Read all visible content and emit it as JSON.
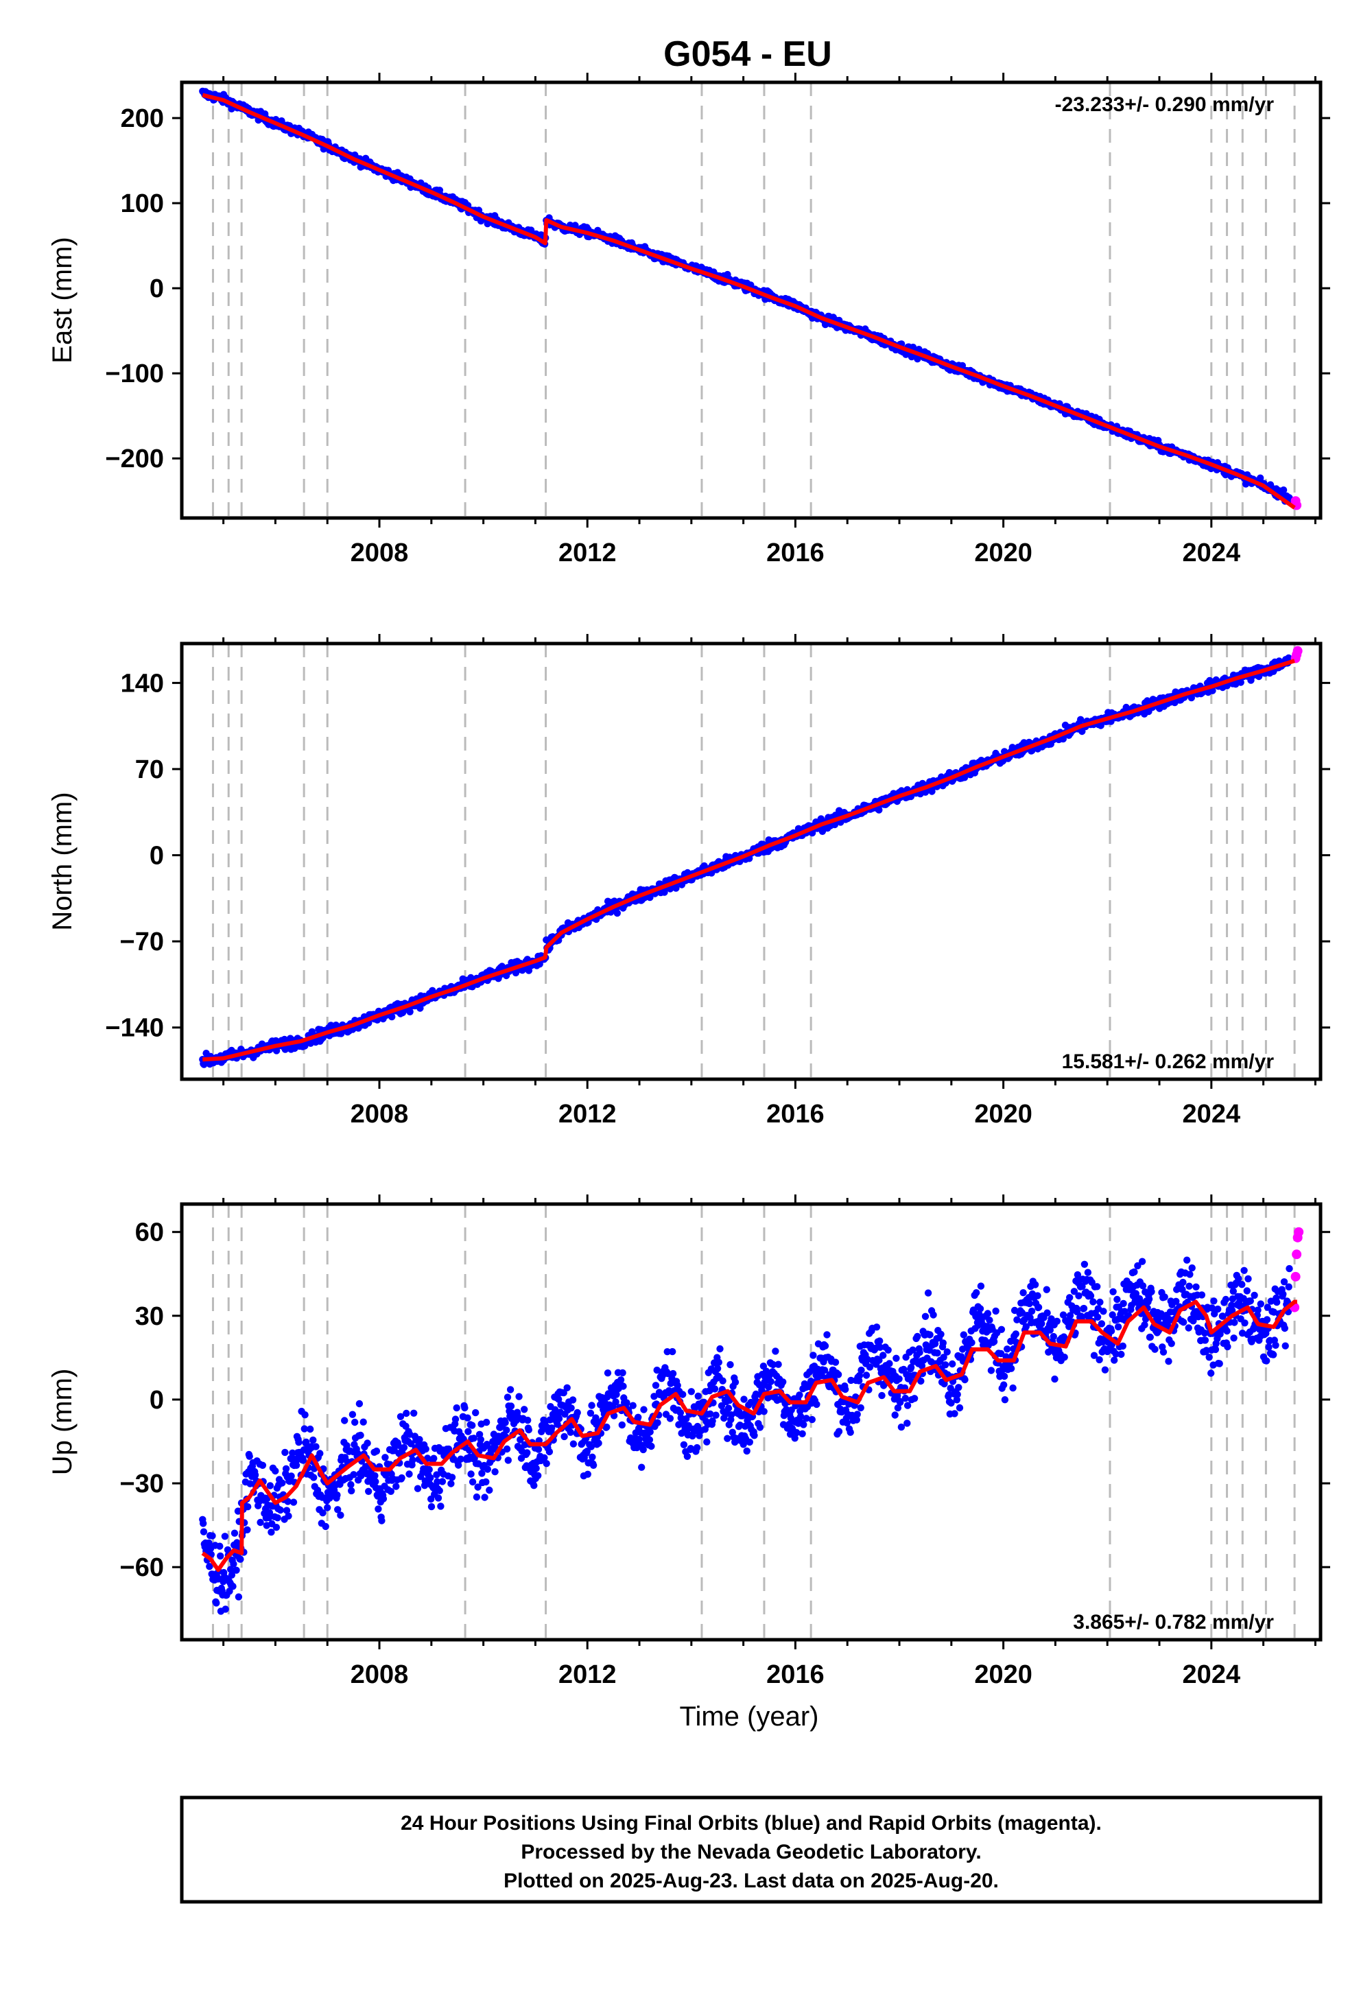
{
  "title": "G054 - EU",
  "xlabel": "Time (year)",
  "footer": {
    "line1": "24 Hour Positions Using Final Orbits (blue) and Rapid Orbits (magenta).",
    "line2": "Processed by the Nevada Geodetic Laboratory.",
    "line3": "Plotted on 2025-Aug-23. Last data on 2025-Aug-20."
  },
  "colors": {
    "final_orbits": "#0000ff",
    "rapid_orbits": "#ff00ff",
    "model": "#ff0000",
    "event_lines": "#bbbbbb",
    "frame": "#000000"
  },
  "chart_data": [
    {
      "type": "scatter",
      "component": "east",
      "ylabel": "East (mm)",
      "rate_label": "-23.233+/- 0.290 mm/yr",
      "rate_label_position": "top-right",
      "xlim": [
        2004.2,
        2026.1
      ],
      "ylim": [
        -270,
        242
      ],
      "xticks": [
        2008,
        2012,
        2016,
        2020,
        2024
      ],
      "yticks": [
        200,
        100,
        0,
        -100,
        -200
      ],
      "ytick_labels": [
        "200",
        "100",
        "0",
        "−100",
        "−200"
      ],
      "grid": false,
      "event_lines": [
        2004.8,
        2005.1,
        2005.35,
        2006.55,
        2007.0,
        2009.65,
        2011.2,
        2014.2,
        2015.4,
        2016.3,
        2022.05,
        2024.0,
        2024.3,
        2024.6,
        2025.05,
        2025.6
      ],
      "series": [
        {
          "name": "Final Orbits",
          "color": "#0000ff",
          "x": [
            2004.6,
            2005.0,
            2005.5,
            2006.0,
            2006.5,
            2007.0,
            2007.5,
            2008.0,
            2008.5,
            2009.0,
            2009.5,
            2010.0,
            2010.5,
            2011.0,
            2011.19,
            2011.21,
            2011.5,
            2012.0,
            2012.5,
            2013.0,
            2013.5,
            2014.0,
            2014.5,
            2015.0,
            2015.5,
            2016.0,
            2016.5,
            2017.0,
            2017.5,
            2018.0,
            2018.5,
            2019.0,
            2019.5,
            2020.0,
            2020.5,
            2021.0,
            2021.5,
            2022.0,
            2022.5,
            2023.0,
            2023.5,
            2024.0,
            2024.5,
            2025.0,
            2025.5
          ],
          "y": [
            229,
            222,
            208,
            194,
            182,
            168,
            153,
            139,
            127,
            113,
            100,
            84,
            72,
            61,
            54,
            80,
            72,
            66,
            57,
            45,
            34,
            24,
            14,
            3,
            -9,
            -20,
            -35,
            -46,
            -57,
            -69,
            -80,
            -92,
            -103,
            -115,
            -126,
            -138,
            -150,
            -162,
            -174,
            -186,
            -196,
            -207,
            -219,
            -232,
            -246
          ]
        },
        {
          "name": "Rapid Orbits",
          "color": "#ff00ff",
          "x": [
            2025.62,
            2025.64
          ],
          "y": [
            -250,
            -255
          ]
        },
        {
          "name": "Model",
          "color": "#ff0000",
          "x": [
            2004.6,
            2005.0,
            2005.5,
            2006.0,
            2006.5,
            2007.0,
            2007.5,
            2008.0,
            2008.5,
            2009.0,
            2009.5,
            2010.0,
            2010.5,
            2011.0,
            2011.19,
            2011.21,
            2011.5,
            2012.0,
            2012.5,
            2013.0,
            2013.5,
            2014.0,
            2014.5,
            2015.0,
            2015.5,
            2016.0,
            2016.5,
            2017.0,
            2017.5,
            2018.0,
            2018.5,
            2019.0,
            2019.5,
            2020.0,
            2020.5,
            2021.0,
            2021.5,
            2022.0,
            2022.5,
            2023.0,
            2023.5,
            2024.0,
            2024.5,
            2025.0,
            2025.6
          ],
          "y": [
            227,
            221,
            207,
            194,
            181,
            167,
            152,
            139,
            126,
            113,
            99,
            84,
            72,
            60,
            53,
            80,
            72,
            65,
            56,
            45,
            34,
            23,
            13,
            2,
            -10,
            -21,
            -35,
            -46,
            -57,
            -69,
            -80,
            -92,
            -103,
            -115,
            -126,
            -138,
            -150,
            -162,
            -174,
            -186,
            -196,
            -207,
            -219,
            -232,
            -258
          ]
        }
      ]
    },
    {
      "type": "scatter",
      "component": "north",
      "ylabel": "North (mm)",
      "rate_label": "15.581+/- 0.262 mm/yr",
      "rate_label_position": "bottom-right",
      "xlim": [
        2004.2,
        2026.1
      ],
      "ylim": [
        -182,
        172
      ],
      "xticks": [
        2008,
        2012,
        2016,
        2020,
        2024
      ],
      "yticks": [
        140,
        70,
        0,
        -70,
        -140
      ],
      "ytick_labels": [
        "140",
        "70",
        "0",
        "−70",
        "−140"
      ],
      "grid": false,
      "event_lines": [
        2004.8,
        2005.1,
        2005.35,
        2006.55,
        2007.0,
        2009.65,
        2011.2,
        2014.2,
        2015.4,
        2016.3,
        2022.05,
        2024.0,
        2024.3,
        2024.6,
        2025.05,
        2025.6
      ],
      "series": [
        {
          "name": "Final Orbits",
          "color": "#0000ff",
          "x": [
            2004.6,
            2005.0,
            2005.5,
            2006.0,
            2006.5,
            2007.0,
            2007.5,
            2008.0,
            2008.5,
            2009.0,
            2009.5,
            2010.0,
            2010.5,
            2011.0,
            2011.19,
            2011.21,
            2011.5,
            2012.0,
            2012.5,
            2013.0,
            2013.5,
            2014.0,
            2014.5,
            2015.0,
            2015.5,
            2016.0,
            2016.5,
            2017.0,
            2017.5,
            2018.0,
            2018.5,
            2019.0,
            2019.5,
            2020.0,
            2020.5,
            2021.0,
            2021.5,
            2022.0,
            2022.5,
            2023.0,
            2023.5,
            2024.0,
            2024.5,
            2025.0,
            2025.5
          ],
          "y": [
            -167,
            -165,
            -160,
            -155,
            -151,
            -144,
            -138,
            -130,
            -123,
            -115,
            -108,
            -100,
            -93,
            -86,
            -83,
            -75,
            -63,
            -52,
            -42,
            -33,
            -25,
            -17,
            -9,
            -1,
            8,
            16,
            25,
            32,
            40,
            48,
            55,
            63,
            72,
            80,
            88,
            96,
            105,
            111,
            117,
            124,
            131,
            137,
            144,
            150,
            158
          ]
        },
        {
          "name": "Rapid Orbits",
          "color": "#ff00ff",
          "x": [
            2025.62,
            2025.64,
            2025.66
          ],
          "y": [
            160,
            163,
            166
          ]
        },
        {
          "name": "Model",
          "color": "#ff0000",
          "x": [
            2004.6,
            2005.0,
            2005.5,
            2006.0,
            2006.5,
            2007.0,
            2007.5,
            2008.0,
            2008.5,
            2009.0,
            2009.5,
            2010.0,
            2010.5,
            2011.0,
            2011.19,
            2011.21,
            2011.5,
            2012.0,
            2012.5,
            2013.0,
            2013.5,
            2014.0,
            2014.5,
            2015.0,
            2015.5,
            2016.0,
            2016.5,
            2017.0,
            2017.5,
            2018.0,
            2018.5,
            2019.0,
            2019.5,
            2020.0,
            2020.5,
            2021.0,
            2021.5,
            2022.0,
            2022.5,
            2023.0,
            2023.5,
            2024.0,
            2024.5,
            2025.0,
            2025.6
          ],
          "y": [
            -166,
            -165,
            -160,
            -155,
            -151,
            -144,
            -138,
            -130,
            -123,
            -115,
            -108,
            -100,
            -93,
            -86,
            -83,
            -75,
            -63,
            -52,
            -42,
            -33,
            -25,
            -17,
            -9,
            -1,
            8,
            16,
            25,
            32,
            40,
            48,
            55,
            63,
            72,
            80,
            88,
            96,
            105,
            111,
            117,
            124,
            131,
            137,
            144,
            150,
            158
          ]
        }
      ]
    },
    {
      "type": "scatter",
      "component": "up",
      "ylabel": "Up (mm)",
      "rate_label": "3.865+/- 0.782 mm/yr",
      "rate_label_position": "bottom-right",
      "xlim": [
        2004.2,
        2026.1
      ],
      "ylim": [
        -86,
        70
      ],
      "xticks": [
        2008,
        2012,
        2016,
        2020,
        2024
      ],
      "yticks": [
        60,
        30,
        0,
        -30,
        -60
      ],
      "ytick_labels": [
        "60",
        "30",
        "0",
        "−30",
        "−60"
      ],
      "grid": false,
      "event_lines": [
        2004.8,
        2005.1,
        2005.35,
        2006.55,
        2007.0,
        2009.65,
        2011.2,
        2014.2,
        2015.4,
        2016.3,
        2022.05,
        2024.0,
        2024.3,
        2024.6,
        2025.05,
        2025.6
      ],
      "series": [
        {
          "name": "Final Orbits",
          "color": "#0000ff",
          "x": [
            2004.6,
            2004.9,
            2005.2,
            2005.35,
            2005.5,
            2005.8,
            2006.2,
            2006.5,
            2007.0,
            2007.5,
            2008.0,
            2008.5,
            2009.0,
            2009.5,
            2010.0,
            2010.5,
            2011.0,
            2011.5,
            2012.0,
            2012.5,
            2013.0,
            2013.5,
            2014.0,
            2014.5,
            2015.0,
            2015.5,
            2016.0,
            2016.5,
            2017.0,
            2017.5,
            2018.0,
            2018.5,
            2019.0,
            2019.5,
            2020.0,
            2020.5,
            2021.0,
            2021.5,
            2022.0,
            2022.5,
            2023.0,
            2023.5,
            2024.0,
            2024.5,
            2025.0,
            2025.5
          ],
          "y": [
            -56,
            -60,
            -57,
            -50,
            -32,
            -36,
            -30,
            -22,
            -30,
            -23,
            -26,
            -20,
            -24,
            -17,
            -20,
            -10,
            -16,
            -6,
            -13,
            -1,
            -10,
            2,
            -7,
            0,
            -5,
            4,
            -2,
            9,
            1,
            14,
            5,
            20,
            10,
            25,
            17,
            29,
            22,
            32,
            27,
            33,
            30,
            35,
            26,
            31,
            27,
            32
          ]
        },
        {
          "name": "Rapid Orbits",
          "color": "#ff00ff",
          "x": [
            2025.6,
            2025.62,
            2025.64,
            2025.66,
            2025.68
          ],
          "y": [
            33,
            44,
            52,
            58,
            60
          ]
        },
        {
          "name": "Model",
          "color": "#ff0000",
          "x": [
            2004.6,
            2004.75,
            2004.9,
            2005.05,
            2005.2,
            2005.35,
            2005.36,
            2005.5,
            2005.7,
            2006.0,
            2006.2,
            2006.4,
            2006.7,
            2006.9,
            2007.0,
            2007.2,
            2007.4,
            2007.7,
            2007.9,
            2008.2,
            2008.4,
            2008.7,
            2008.9,
            2009.2,
            2009.4,
            2009.7,
            2009.9,
            2010.2,
            2010.4,
            2010.7,
            2010.9,
            2011.2,
            2011.4,
            2011.7,
            2011.9,
            2012.2,
            2012.4,
            2012.7,
            2012.9,
            2013.2,
            2013.4,
            2013.7,
            2013.9,
            2014.2,
            2014.4,
            2014.7,
            2014.9,
            2015.2,
            2015.4,
            2015.7,
            2015.9,
            2016.2,
            2016.4,
            2016.7,
            2016.9,
            2017.2,
            2017.4,
            2017.7,
            2017.9,
            2018.2,
            2018.4,
            2018.7,
            2018.9,
            2019.2,
            2019.4,
            2019.7,
            2019.9,
            2020.2,
            2020.4,
            2020.7,
            2020.9,
            2021.2,
            2021.4,
            2021.7,
            2021.9,
            2022.2,
            2022.4,
            2022.7,
            2022.9,
            2023.2,
            2023.4,
            2023.7,
            2023.9,
            2024.0,
            2024.2,
            2024.4,
            2024.7,
            2024.9,
            2025.2,
            2025.4,
            2025.6,
            2025.65
          ],
          "y": [
            -55,
            -57,
            -61,
            -57,
            -54,
            -55,
            -37,
            -35,
            -29,
            -37,
            -35,
            -31,
            -20,
            -27,
            -30,
            -27,
            -24,
            -20,
            -25,
            -25,
            -21,
            -18,
            -23,
            -23,
            -19,
            -15,
            -20,
            -21,
            -15,
            -11,
            -16,
            -16,
            -12,
            -7,
            -13,
            -12,
            -5,
            -3,
            -8,
            -9,
            -2,
            2,
            -4,
            -5,
            1,
            3,
            -2,
            -5,
            2,
            3,
            -1,
            -1,
            6,
            7,
            1,
            -1,
            6,
            8,
            3,
            3,
            10,
            12,
            7,
            9,
            18,
            18,
            14,
            14,
            24,
            24,
            20,
            19,
            28,
            28,
            24,
            20,
            28,
            33,
            27,
            24,
            32,
            35,
            30,
            24,
            27,
            30,
            33,
            27,
            26,
            32,
            35,
            35
          ]
        }
      ]
    }
  ]
}
